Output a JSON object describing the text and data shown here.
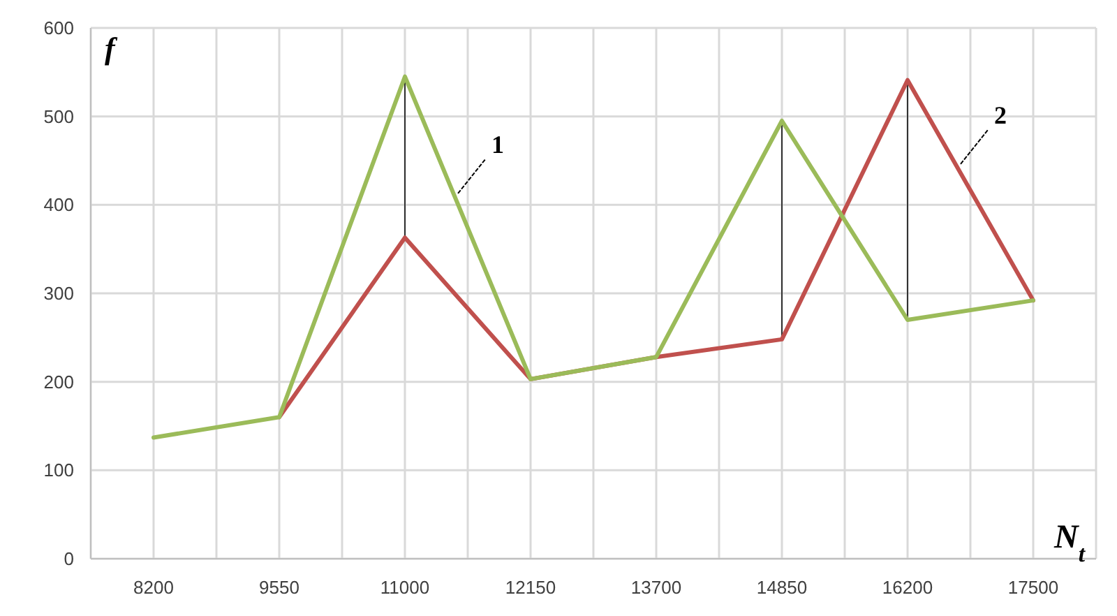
{
  "chart_data": {
    "type": "line",
    "xlabel": "N$_{t}$",
    "ylabel": "f",
    "categories": [
      "8200",
      "9550",
      "11000",
      "12150",
      "13700",
      "14850",
      "16200",
      "17500"
    ],
    "series": [
      {
        "color": "#c0504d",
        "values": [
          null,
          160,
          363,
          203,
          228,
          248,
          541,
          292
        ]
      },
      {
        "color": "#9bbb59",
        "values": [
          137,
          160,
          545,
          203,
          228,
          495,
          270,
          292
        ]
      }
    ],
    "annotations": [
      "2",
      "1"
    ],
    "ylim": [
      0,
      600
    ],
    "yticks": [
      0,
      100,
      200,
      300,
      400,
      500,
      600
    ],
    "grid": true,
    "marker": "none",
    "line_style": "solid"
  }
}
